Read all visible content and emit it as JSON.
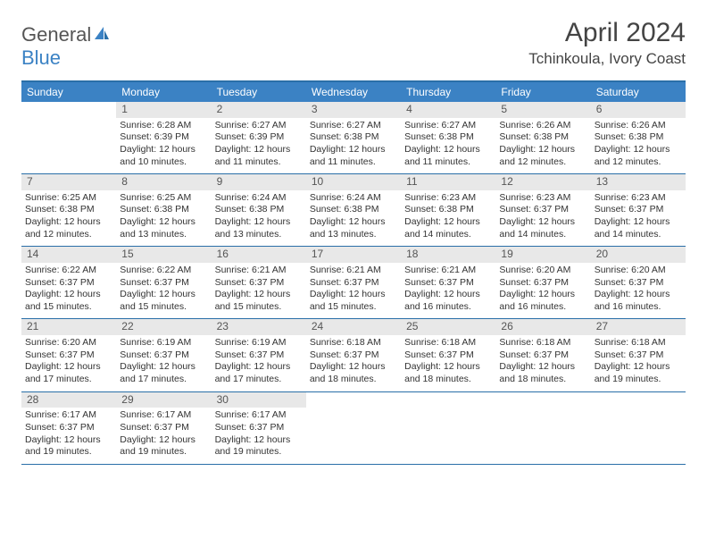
{
  "brand": {
    "general": "General",
    "blue": "Blue"
  },
  "title": "April 2024",
  "location": "Tchinkoula, Ivory Coast",
  "colors": {
    "header_bg": "#3b82c4",
    "border": "#2a6fa8",
    "daynum_bg": "#e8e8e8",
    "text": "#333333"
  },
  "day_names": [
    "Sunday",
    "Monday",
    "Tuesday",
    "Wednesday",
    "Thursday",
    "Friday",
    "Saturday"
  ],
  "weeks": [
    [
      {
        "n": "",
        "sr": "",
        "ss": "",
        "dl": ""
      },
      {
        "n": "1",
        "sr": "Sunrise: 6:28 AM",
        "ss": "Sunset: 6:39 PM",
        "dl": "Daylight: 12 hours and 10 minutes."
      },
      {
        "n": "2",
        "sr": "Sunrise: 6:27 AM",
        "ss": "Sunset: 6:39 PM",
        "dl": "Daylight: 12 hours and 11 minutes."
      },
      {
        "n": "3",
        "sr": "Sunrise: 6:27 AM",
        "ss": "Sunset: 6:38 PM",
        "dl": "Daylight: 12 hours and 11 minutes."
      },
      {
        "n": "4",
        "sr": "Sunrise: 6:27 AM",
        "ss": "Sunset: 6:38 PM",
        "dl": "Daylight: 12 hours and 11 minutes."
      },
      {
        "n": "5",
        "sr": "Sunrise: 6:26 AM",
        "ss": "Sunset: 6:38 PM",
        "dl": "Daylight: 12 hours and 12 minutes."
      },
      {
        "n": "6",
        "sr": "Sunrise: 6:26 AM",
        "ss": "Sunset: 6:38 PM",
        "dl": "Daylight: 12 hours and 12 minutes."
      }
    ],
    [
      {
        "n": "7",
        "sr": "Sunrise: 6:25 AM",
        "ss": "Sunset: 6:38 PM",
        "dl": "Daylight: 12 hours and 12 minutes."
      },
      {
        "n": "8",
        "sr": "Sunrise: 6:25 AM",
        "ss": "Sunset: 6:38 PM",
        "dl": "Daylight: 12 hours and 13 minutes."
      },
      {
        "n": "9",
        "sr": "Sunrise: 6:24 AM",
        "ss": "Sunset: 6:38 PM",
        "dl": "Daylight: 12 hours and 13 minutes."
      },
      {
        "n": "10",
        "sr": "Sunrise: 6:24 AM",
        "ss": "Sunset: 6:38 PM",
        "dl": "Daylight: 12 hours and 13 minutes."
      },
      {
        "n": "11",
        "sr": "Sunrise: 6:23 AM",
        "ss": "Sunset: 6:38 PM",
        "dl": "Daylight: 12 hours and 14 minutes."
      },
      {
        "n": "12",
        "sr": "Sunrise: 6:23 AM",
        "ss": "Sunset: 6:37 PM",
        "dl": "Daylight: 12 hours and 14 minutes."
      },
      {
        "n": "13",
        "sr": "Sunrise: 6:23 AM",
        "ss": "Sunset: 6:37 PM",
        "dl": "Daylight: 12 hours and 14 minutes."
      }
    ],
    [
      {
        "n": "14",
        "sr": "Sunrise: 6:22 AM",
        "ss": "Sunset: 6:37 PM",
        "dl": "Daylight: 12 hours and 15 minutes."
      },
      {
        "n": "15",
        "sr": "Sunrise: 6:22 AM",
        "ss": "Sunset: 6:37 PM",
        "dl": "Daylight: 12 hours and 15 minutes."
      },
      {
        "n": "16",
        "sr": "Sunrise: 6:21 AM",
        "ss": "Sunset: 6:37 PM",
        "dl": "Daylight: 12 hours and 15 minutes."
      },
      {
        "n": "17",
        "sr": "Sunrise: 6:21 AM",
        "ss": "Sunset: 6:37 PM",
        "dl": "Daylight: 12 hours and 15 minutes."
      },
      {
        "n": "18",
        "sr": "Sunrise: 6:21 AM",
        "ss": "Sunset: 6:37 PM",
        "dl": "Daylight: 12 hours and 16 minutes."
      },
      {
        "n": "19",
        "sr": "Sunrise: 6:20 AM",
        "ss": "Sunset: 6:37 PM",
        "dl": "Daylight: 12 hours and 16 minutes."
      },
      {
        "n": "20",
        "sr": "Sunrise: 6:20 AM",
        "ss": "Sunset: 6:37 PM",
        "dl": "Daylight: 12 hours and 16 minutes."
      }
    ],
    [
      {
        "n": "21",
        "sr": "Sunrise: 6:20 AM",
        "ss": "Sunset: 6:37 PM",
        "dl": "Daylight: 12 hours and 17 minutes."
      },
      {
        "n": "22",
        "sr": "Sunrise: 6:19 AM",
        "ss": "Sunset: 6:37 PM",
        "dl": "Daylight: 12 hours and 17 minutes."
      },
      {
        "n": "23",
        "sr": "Sunrise: 6:19 AM",
        "ss": "Sunset: 6:37 PM",
        "dl": "Daylight: 12 hours and 17 minutes."
      },
      {
        "n": "24",
        "sr": "Sunrise: 6:18 AM",
        "ss": "Sunset: 6:37 PM",
        "dl": "Daylight: 12 hours and 18 minutes."
      },
      {
        "n": "25",
        "sr": "Sunrise: 6:18 AM",
        "ss": "Sunset: 6:37 PM",
        "dl": "Daylight: 12 hours and 18 minutes."
      },
      {
        "n": "26",
        "sr": "Sunrise: 6:18 AM",
        "ss": "Sunset: 6:37 PM",
        "dl": "Daylight: 12 hours and 18 minutes."
      },
      {
        "n": "27",
        "sr": "Sunrise: 6:18 AM",
        "ss": "Sunset: 6:37 PM",
        "dl": "Daylight: 12 hours and 19 minutes."
      }
    ],
    [
      {
        "n": "28",
        "sr": "Sunrise: 6:17 AM",
        "ss": "Sunset: 6:37 PM",
        "dl": "Daylight: 12 hours and 19 minutes."
      },
      {
        "n": "29",
        "sr": "Sunrise: 6:17 AM",
        "ss": "Sunset: 6:37 PM",
        "dl": "Daylight: 12 hours and 19 minutes."
      },
      {
        "n": "30",
        "sr": "Sunrise: 6:17 AM",
        "ss": "Sunset: 6:37 PM",
        "dl": "Daylight: 12 hours and 19 minutes."
      },
      {
        "n": "",
        "sr": "",
        "ss": "",
        "dl": ""
      },
      {
        "n": "",
        "sr": "",
        "ss": "",
        "dl": ""
      },
      {
        "n": "",
        "sr": "",
        "ss": "",
        "dl": ""
      },
      {
        "n": "",
        "sr": "",
        "ss": "",
        "dl": ""
      }
    ]
  ]
}
